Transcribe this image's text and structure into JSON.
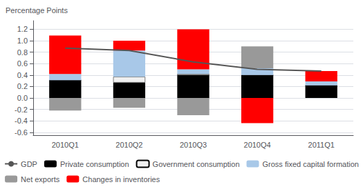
{
  "chart_data": {
    "type": "bar",
    "categories": [
      "2010Q1",
      "2010Q2",
      "2010Q3",
      "2010Q4",
      "2011Q1"
    ],
    "ylabel": "Percentage Points",
    "ylim": [
      -0.65,
      1.35
    ],
    "yticks": [
      -0.6,
      -0.4,
      -0.2,
      {
        "value": 0,
        "label": "0.0"
      },
      0.2,
      0.4,
      0.6,
      0.8,
      {
        "value": 1,
        "label": "1.0"
      },
      1.2
    ],
    "grid": true,
    "stacked": true,
    "legend": "bottom",
    "series": [
      {
        "name": "GDP",
        "type": "line",
        "color": "#555555",
        "values": [
          0.87,
          0.83,
          0.63,
          0.5,
          0.47
        ]
      },
      {
        "name": "Private consumption",
        "type": "bar",
        "color": "#000000",
        "values": [
          0.31,
          0.27,
          0.4,
          0.4,
          0.22
        ]
      },
      {
        "name": "Government consumption",
        "type": "bar",
        "color": "#f0f0f0",
        "values": [
          0.0,
          0.1,
          0.02,
          0.0,
          0.0
        ]
      },
      {
        "name": "Gross fixed capital formation",
        "type": "bar",
        "color": "#a8c8e8",
        "values": [
          0.11,
          0.46,
          0.08,
          0.12,
          0.07
        ]
      },
      {
        "name": "Net exports",
        "type": "bar",
        "color": "#999999",
        "values": [
          -0.22,
          -0.17,
          -0.3,
          0.38,
          0.0
        ]
      },
      {
        "name": "Changes in inventories",
        "type": "bar",
        "color": "#ff0000",
        "values": [
          0.67,
          0.17,
          0.7,
          -0.44,
          0.18
        ]
      }
    ]
  }
}
